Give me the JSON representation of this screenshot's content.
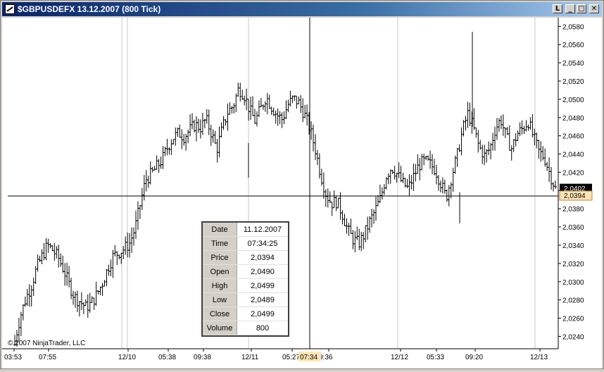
{
  "window": {
    "title": "$GBPUSDEFX  13.12.2007 (800 Tick)",
    "buttons": {
      "link": "L",
      "minimize": "_",
      "maximize": "□",
      "close": "✕"
    }
  },
  "copyright": "© 2007 NinjaTrader, LLC",
  "crosshair": {
    "time_label": "07:34",
    "price_label": "2,0394"
  },
  "last_price": "2,0402",
  "colors": {
    "bars": "#000000",
    "last_price_bg": "#000000",
    "crosshair_price_bg": "#ffe4b5",
    "crosshair_time_bg": "#ffe4b5"
  },
  "data_box": {
    "rows": [
      {
        "label": "Date",
        "value": "11.12.2007"
      },
      {
        "label": "Time",
        "value": "07:34:25"
      },
      {
        "label": "Price",
        "value": "2,0394"
      },
      {
        "label": "Open",
        "value": "2,0490"
      },
      {
        "label": "High",
        "value": "2,0499"
      },
      {
        "label": "Low",
        "value": "2,0489"
      },
      {
        "label": "Close",
        "value": "2,0499"
      },
      {
        "label": "Volume",
        "value": "800"
      }
    ]
  },
  "chart_data": {
    "type": "ohlc",
    "y_ticks": [
      "2,0240",
      "2,0260",
      "2,0280",
      "2,0300",
      "2,0320",
      "2,0340",
      "2,0360",
      "2,0380",
      "2,0400",
      "2,0420",
      "2,0440",
      "2,0460",
      "2,0480",
      "2,0500",
      "2,0520",
      "2,0540",
      "2,0560",
      "2,0580"
    ],
    "ylim": [
      2.0228,
      2.0588
    ],
    "x_tick_labels": [
      "03:53",
      "07:55",
      "12/10",
      "05:38",
      "09:38",
      "12/11",
      "05:27",
      "9:36",
      "12/12",
      "05:33",
      "09:20",
      "12/13"
    ],
    "session_breaks": [
      "12/10",
      "12/11",
      "12/12",
      "12/13"
    ],
    "grid": false,
    "close_series": [
      2.0235,
      2.0262,
      2.0281,
      2.0295,
      2.0315,
      2.0328,
      2.034,
      2.0334,
      2.0326,
      2.0312,
      2.0296,
      2.0283,
      2.0278,
      2.0272,
      2.0276,
      2.0286,
      2.0298,
      2.0314,
      2.0328,
      2.0332,
      2.0336,
      2.0342,
      2.0358,
      2.0386,
      2.0412,
      2.0418,
      2.0426,
      2.0434,
      2.0448,
      2.0458,
      2.0463,
      2.0459,
      2.0466,
      2.0472,
      2.0469,
      2.0478,
      2.0463,
      2.0445,
      2.0468,
      2.0486,
      2.0493,
      2.0512,
      2.0505,
      2.0488,
      2.0476,
      2.0489,
      2.0503,
      2.0492,
      2.0483,
      2.0478,
      2.0494,
      2.0501,
      2.0496,
      2.0484,
      2.0468,
      2.0446,
      2.0418,
      2.0396,
      2.0386,
      2.0388,
      2.0374,
      2.0356,
      2.0346,
      2.0342,
      2.0352,
      2.0366,
      2.0378,
      2.0392,
      2.0416,
      2.0426,
      2.0418,
      2.0408,
      2.0402,
      2.0415,
      2.0428,
      2.0432,
      2.0429,
      2.0423,
      2.0408,
      2.0392,
      2.0416,
      2.0438,
      2.0466,
      2.0485,
      2.0468,
      2.0448,
      2.0438,
      2.0446,
      2.0468,
      2.0478,
      2.0458,
      2.0446,
      2.0462,
      2.0468,
      2.0476,
      2.0458,
      2.0442,
      2.0436,
      2.0418,
      2.0402
    ]
  }
}
